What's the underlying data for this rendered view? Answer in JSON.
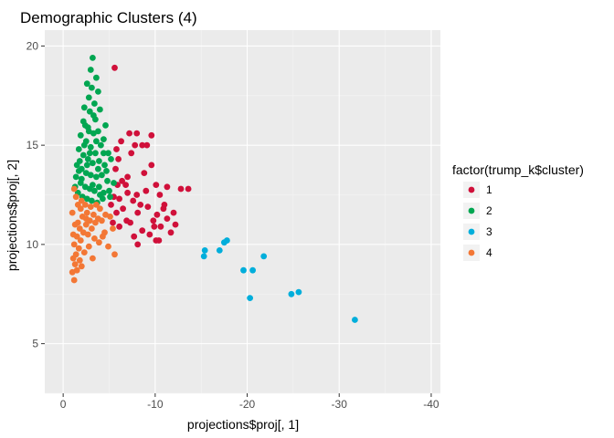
{
  "chart_data": {
    "type": "scatter",
    "title": "Demographic Clusters (4)",
    "xlabel": "projections$proj[, 1]",
    "ylabel": "projections$proj[, 2]",
    "x_reversed": true,
    "xlim": [
      2,
      -41
    ],
    "ylim": [
      2.5,
      20.8
    ],
    "x_ticks": [
      0,
      -10,
      -20,
      -30,
      -40
    ],
    "x_tick_labels": [
      "0",
      "-10",
      "-20",
      "-30",
      "-40"
    ],
    "y_ticks": [
      5,
      10,
      15,
      20
    ],
    "y_tick_labels": [
      "5",
      "10",
      "15",
      "20"
    ],
    "grid": true,
    "legend": {
      "title": "factor(trump_k$cluster)",
      "position": "right"
    },
    "series": [
      {
        "name": "1",
        "color": "#d0103a",
        "points": [
          [
            -5.6,
            18.9
          ],
          [
            -7.2,
            15.6
          ],
          [
            -8.0,
            15.6
          ],
          [
            -9.6,
            15.5
          ],
          [
            -6.3,
            15.2
          ],
          [
            -7.8,
            15.0
          ],
          [
            -8.6,
            15.0
          ],
          [
            -9.1,
            15.0
          ],
          [
            -5.8,
            14.8
          ],
          [
            -7.4,
            14.6
          ],
          [
            -6.0,
            14.3
          ],
          [
            -9.6,
            14.0
          ],
          [
            -5.7,
            13.8
          ],
          [
            -8.8,
            13.6
          ],
          [
            -10.1,
            13.0
          ],
          [
            -5.9,
            13.0
          ],
          [
            -6.8,
            13.0
          ],
          [
            -11.3,
            12.9
          ],
          [
            -12.8,
            12.8
          ],
          [
            -13.6,
            12.8
          ],
          [
            -7.0,
            12.6
          ],
          [
            -8.0,
            12.5
          ],
          [
            -10.5,
            12.5
          ],
          [
            -5.5,
            12.4
          ],
          [
            -6.1,
            12.3
          ],
          [
            -7.6,
            12.2
          ],
          [
            -11.0,
            12.0
          ],
          [
            -5.2,
            12.0
          ],
          [
            -9.2,
            11.9
          ],
          [
            -10.9,
            11.8
          ],
          [
            -5.8,
            11.6
          ],
          [
            -6.5,
            11.8
          ],
          [
            -8.1,
            11.6
          ],
          [
            -11.3,
            11.3
          ],
          [
            -9.8,
            11.2
          ],
          [
            -7.3,
            11.1
          ],
          [
            -12.2,
            11.0
          ],
          [
            -10.6,
            10.9
          ],
          [
            -8.6,
            10.7
          ],
          [
            -11.7,
            10.6
          ],
          [
            -9.4,
            10.5
          ],
          [
            -10.1,
            10.2
          ],
          [
            -10.4,
            10.2
          ],
          [
            -8.1,
            10.0
          ],
          [
            -6.1,
            10.9
          ],
          [
            -7.7,
            10.4
          ],
          [
            -9.9,
            10.9
          ],
          [
            -12.0,
            11.6
          ],
          [
            -6.9,
            11.2
          ],
          [
            -8.4,
            12.0
          ],
          [
            -5.4,
            11.1
          ],
          [
            -7.0,
            13.4
          ],
          [
            -6.4,
            13.2
          ],
          [
            -9.0,
            12.7
          ],
          [
            -10.2,
            11.5
          ]
        ]
      },
      {
        "name": "2",
        "color": "#00a651",
        "points": [
          [
            -3.2,
            19.4
          ],
          [
            -3.0,
            18.8
          ],
          [
            -3.6,
            18.4
          ],
          [
            -2.6,
            18.1
          ],
          [
            -3.1,
            17.9
          ],
          [
            -3.8,
            17.7
          ],
          [
            -2.8,
            17.4
          ],
          [
            -3.4,
            17.1
          ],
          [
            -2.3,
            16.9
          ],
          [
            -2.9,
            16.7
          ],
          [
            -4.0,
            16.8
          ],
          [
            -3.5,
            16.3
          ],
          [
            -4.6,
            16.0
          ],
          [
            -2.2,
            16.2
          ],
          [
            -2.7,
            15.9
          ],
          [
            -3.3,
            15.6
          ],
          [
            -3.8,
            15.7
          ],
          [
            -4.4,
            15.3
          ],
          [
            -1.9,
            15.5
          ],
          [
            -2.5,
            15.2
          ],
          [
            -3.0,
            14.9
          ],
          [
            -3.5,
            14.6
          ],
          [
            -4.9,
            14.6
          ],
          [
            -1.7,
            14.8
          ],
          [
            -2.2,
            14.5
          ],
          [
            -2.7,
            14.3
          ],
          [
            -3.2,
            14.1
          ],
          [
            -3.9,
            14.2
          ],
          [
            -4.5,
            14.0
          ],
          [
            -5.2,
            14.3
          ],
          [
            -1.5,
            14.0
          ],
          [
            -2.0,
            13.8
          ],
          [
            -2.5,
            13.6
          ],
          [
            -3.0,
            13.5
          ],
          [
            -3.6,
            13.4
          ],
          [
            -4.2,
            13.5
          ],
          [
            -4.8,
            13.2
          ],
          [
            -1.4,
            13.4
          ],
          [
            -1.9,
            13.1
          ],
          [
            -2.4,
            12.9
          ],
          [
            -2.9,
            12.8
          ],
          [
            -3.4,
            12.7
          ],
          [
            -3.9,
            12.9
          ],
          [
            -4.4,
            12.6
          ],
          [
            -5.0,
            12.7
          ],
          [
            -1.6,
            12.6
          ],
          [
            -2.1,
            12.4
          ],
          [
            -2.6,
            12.3
          ],
          [
            -3.1,
            12.2
          ],
          [
            -3.7,
            12.1
          ],
          [
            -4.3,
            12.3
          ],
          [
            -1.3,
            12.9
          ],
          [
            -1.8,
            14.2
          ],
          [
            -2.3,
            15.0
          ],
          [
            -2.8,
            15.7
          ],
          [
            -3.3,
            16.5
          ],
          [
            -4.1,
            15.0
          ],
          [
            -4.7,
            13.7
          ],
          [
            -5.5,
            13.1
          ],
          [
            -2.0,
            13.3
          ],
          [
            -2.6,
            14.0
          ],
          [
            -3.2,
            13.0
          ],
          [
            -3.8,
            13.8
          ],
          [
            -4.4,
            14.6
          ],
          [
            -1.7,
            13.7
          ],
          [
            -2.4,
            16.0
          ],
          [
            -3.6,
            15.2
          ],
          [
            -2.9,
            14.6
          ],
          [
            -4.0,
            12.5
          ],
          [
            -5.1,
            12.4
          ]
        ]
      },
      {
        "name": "3",
        "color": "#00aedb",
        "points": [
          [
            -15.4,
            9.7
          ],
          [
            -15.3,
            9.4
          ],
          [
            -17.0,
            9.7
          ],
          [
            -17.5,
            10.1
          ],
          [
            -17.8,
            10.2
          ],
          [
            -21.8,
            9.4
          ],
          [
            -19.6,
            8.7
          ],
          [
            -20.6,
            8.7
          ],
          [
            -20.3,
            7.3
          ],
          [
            -24.8,
            7.5
          ],
          [
            -25.6,
            7.6
          ],
          [
            -31.7,
            6.2
          ]
        ]
      },
      {
        "name": "4",
        "color": "#f37735",
        "points": [
          [
            -1.2,
            8.2
          ],
          [
            -1.0,
            8.6
          ],
          [
            -1.3,
            9.0
          ],
          [
            -1.1,
            9.3
          ],
          [
            -1.4,
            9.5
          ],
          [
            -1.7,
            9.8
          ],
          [
            -1.2,
            10.0
          ],
          [
            -1.9,
            10.2
          ],
          [
            -1.5,
            10.4
          ],
          [
            -2.2,
            10.6
          ],
          [
            -1.8,
            10.8
          ],
          [
            -2.5,
            11.0
          ],
          [
            -1.6,
            11.1
          ],
          [
            -2.9,
            11.2
          ],
          [
            -2.1,
            11.4
          ],
          [
            -3.3,
            11.5
          ],
          [
            -2.6,
            11.6
          ],
          [
            -3.8,
            11.3
          ],
          [
            -1.9,
            11.8
          ],
          [
            -3.0,
            11.9
          ],
          [
            -4.2,
            11.2
          ],
          [
            -4.6,
            11.5
          ],
          [
            -5.1,
            11.4
          ],
          [
            -2.4,
            12.0
          ],
          [
            -3.6,
            12.0
          ],
          [
            -1.4,
            12.4
          ],
          [
            -1.2,
            12.8
          ],
          [
            -1.3,
            11.0
          ],
          [
            -2.7,
            10.5
          ],
          [
            -3.4,
            10.3
          ],
          [
            -2.3,
            9.6
          ],
          [
            -2.8,
            9.9
          ],
          [
            -3.9,
            10.1
          ],
          [
            -4.5,
            10.6
          ],
          [
            -5.4,
            10.8
          ],
          [
            -5.6,
            9.5
          ],
          [
            -4.9,
            9.9
          ],
          [
            -3.2,
            9.3
          ],
          [
            -2.0,
            8.9
          ],
          [
            -1.5,
            8.7
          ],
          [
            -1.1,
            10.5
          ],
          [
            -1.6,
            12.0
          ],
          [
            -2.0,
            12.2
          ],
          [
            -3.1,
            10.8
          ],
          [
            -4.0,
            11.8
          ],
          [
            -1.8,
            9.2
          ],
          [
            -2.5,
            11.3
          ],
          [
            -3.5,
            11.1
          ],
          [
            -4.3,
            10.4
          ],
          [
            -1.0,
            11.6
          ]
        ]
      }
    ]
  }
}
